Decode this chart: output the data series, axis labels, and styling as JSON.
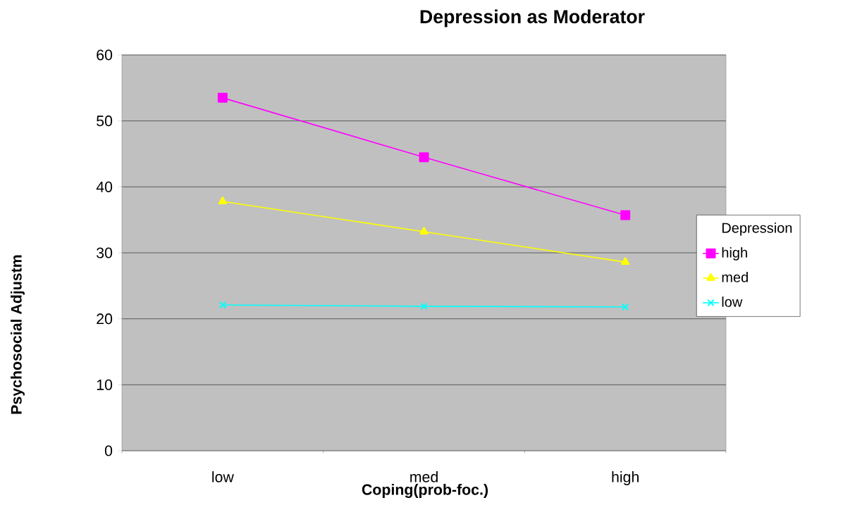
{
  "chart_data": {
    "type": "line",
    "title": "Depression as Moderator",
    "xlabel": "Coping(prob-foc.)",
    "ylabel": "Psychosocial Adjustm",
    "legend_title": "Depression",
    "categories": [
      "low",
      "med",
      "high"
    ],
    "series": [
      {
        "name": "high",
        "color": "#ff00ff",
        "marker": "square",
        "values": [
          53.5,
          44.5,
          35.7
        ]
      },
      {
        "name": "med",
        "color": "#ffff00",
        "marker": "triangle",
        "values": [
          37.8,
          33.2,
          28.6
        ]
      },
      {
        "name": "low",
        "color": "#00ffff",
        "marker": "cross",
        "values": [
          22.1,
          21.9,
          21.8
        ]
      }
    ],
    "ylim": [
      0,
      60
    ],
    "yticks": [
      0,
      10,
      20,
      30,
      40,
      50,
      60
    ],
    "grid": "y",
    "legend": "right"
  }
}
